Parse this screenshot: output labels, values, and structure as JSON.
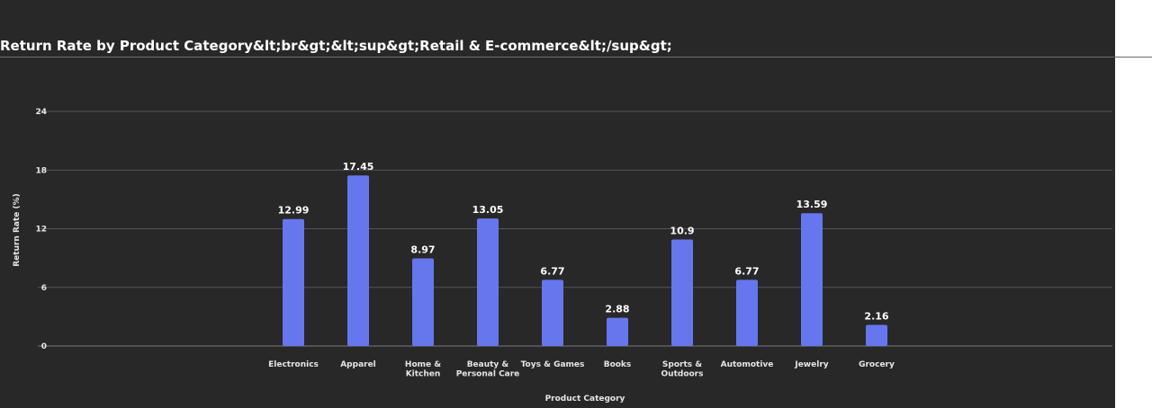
{
  "chart_data": {
    "type": "bar",
    "title": "Return Rate by Product Category&lt;br&gt;&lt;sup&gt;Retail & E-commerce&lt;/sup&gt;",
    "xlabel": "Product Category",
    "ylabel": "Return Rate (%)",
    "ylim": [
      0,
      24
    ],
    "yticks": [
      "0",
      "6",
      "12",
      "18",
      "24"
    ],
    "grid": true,
    "bar_color": "#6677ee",
    "categories": [
      [
        "Electronics"
      ],
      [
        "Apparel"
      ],
      [
        "Home &",
        "Kitchen"
      ],
      [
        "Beauty &",
        "Personal Care"
      ],
      [
        "Toys & Games"
      ],
      [
        "Books"
      ],
      [
        "Sports &",
        "Outdoors"
      ],
      [
        "Automotive"
      ],
      [
        "Jewelry"
      ],
      [
        "Grocery"
      ]
    ],
    "values": [
      12.99,
      17.45,
      8.97,
      13.05,
      6.77,
      2.88,
      10.9,
      6.77,
      13.59,
      2.16
    ],
    "value_labels": [
      "12.99",
      "17.45",
      "8.97",
      "13.05",
      "6.77",
      "2.88",
      "10.9",
      "6.77",
      "13.59",
      "2.16"
    ]
  }
}
